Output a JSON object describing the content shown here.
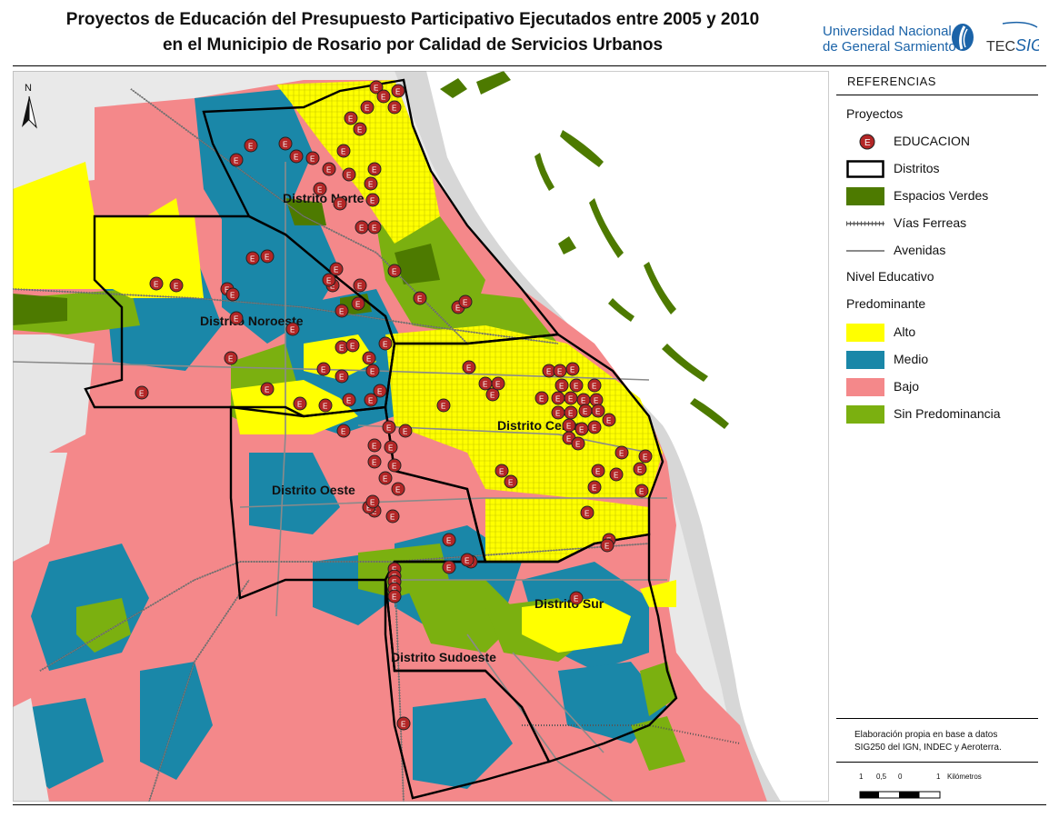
{
  "title": {
    "line1": "Proyectos de Educación del Presupuesto Participativo Ejecutados entre 2005 y 2010",
    "line2": "en el Municipio de Rosario por Calidad de Servicios Urbanos"
  },
  "logo": {
    "university_line1": "Universidad Nacional",
    "university_line2": "de General Sarmiento",
    "tec": "TEC",
    "sig": "SIG"
  },
  "map": {
    "north_label": "N",
    "districts": [
      {
        "name": "Distrito Norte"
      },
      {
        "name": "Distrito Noroeste"
      },
      {
        "name": "Distrito Centro"
      },
      {
        "name": "Distrito Oeste"
      },
      {
        "name": "Distrito Sur"
      },
      {
        "name": "Distrito Sudoeste"
      }
    ],
    "project_marker_letter": "E",
    "colors": {
      "alto": "#ffff00",
      "medio": "#1a87a8",
      "bajo": "#f4888a",
      "sin_predominancia": "#7bb010",
      "espacios_verdes": "#4d7a00",
      "river": "#d8d8d8",
      "marker": "#b32626"
    }
  },
  "legend": {
    "header": "REFERENCIAS",
    "section_projects": "Proyectos",
    "items_top": [
      {
        "label": "EDUCACION",
        "type": "marker"
      },
      {
        "label": "Distritos",
        "type": "district"
      },
      {
        "label": "Espacios Verdes",
        "type": "fill",
        "color": "#4d7a00"
      },
      {
        "label": "Vías Ferreas",
        "type": "rail"
      },
      {
        "label": "Avenidas",
        "type": "avenue"
      }
    ],
    "section_level_1": "Nivel Educativo",
    "section_level_2": "Predominante",
    "items_levels": [
      {
        "label": "Alto",
        "color": "#ffff00"
      },
      {
        "label": "Medio",
        "color": "#1a87a8"
      },
      {
        "label": "Bajo",
        "color": "#f4888a"
      },
      {
        "label": "Sin Predominancia",
        "color": "#7bb010"
      }
    ],
    "credit_line1": "Elaboración propia en base a datos",
    "credit_line2": "SIG250 del IGN, INDEC y Aeroterra.",
    "scale": {
      "ticks": [
        "1",
        "0,5",
        "0",
        "1"
      ],
      "unit": "Kilómetros"
    }
  }
}
